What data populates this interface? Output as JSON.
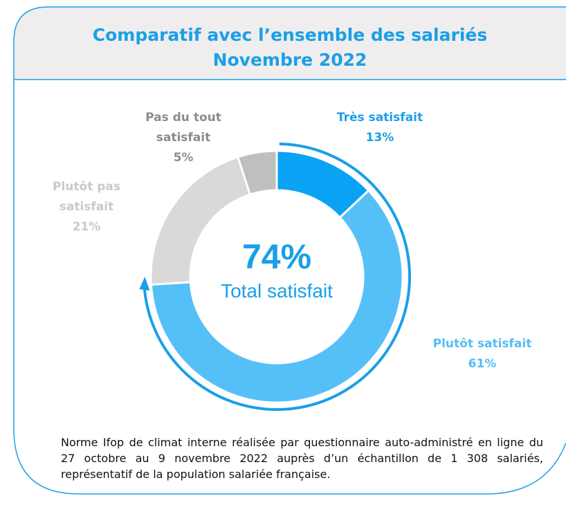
{
  "chart_data": {
    "type": "donut",
    "title": "Comparatif avec l’ensemble des salariés",
    "subtitle": "Novembre 2022",
    "categories": [
      "Très satisfait",
      "Plutôt satisfait",
      "Plutôt pas satisfait",
      "Pas du tout satisfait"
    ],
    "values": [
      13,
      61,
      21,
      5
    ],
    "value_labels": [
      "13%",
      "61%",
      "21%",
      "5%"
    ],
    "colors": [
      "#0aa2f5",
      "#55c0f8",
      "#d9d9d9",
      "#bfbfbf"
    ],
    "label_colors": [
      "#1a9fe8",
      "#55bdf5",
      "#c9c9c9",
      "#8c8c8c"
    ],
    "annotations": [
      "74%",
      "Total satisfait"
    ],
    "note": "Norme Ifop de climat interne réalisée par questionnaire auto-administré en ligne du 27 octobre au 9 novembre 2022 auprès d’un échantillon de 1 308 salariés, représentatif de la population salariée française."
  }
}
